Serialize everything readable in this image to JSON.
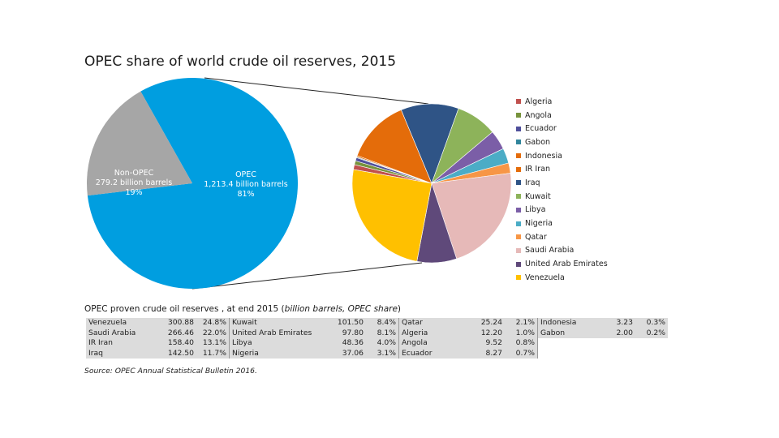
{
  "title": "OPEC share of world crude oil reserves, 2015",
  "chart_data": [
    {
      "type": "pie",
      "slices": [
        {
          "name": "OPEC",
          "value_label": "1,213.4 billion barrels",
          "pct_label": "81%",
          "value": 1213.4,
          "color": "#009ee0"
        },
        {
          "name": "Non-OPEC",
          "value_label": "279.2 billion barrels",
          "pct_label": "19%",
          "value": 279.2,
          "color": "#a6a6a6"
        }
      ]
    },
    {
      "type": "pie",
      "legend_position": "right",
      "series": [
        {
          "name": "Algeria",
          "value": 12.2,
          "color": "#c0504d"
        },
        {
          "name": "Angola",
          "value": 9.52,
          "color": "#77933c"
        },
        {
          "name": "Ecuador",
          "value": 8.27,
          "color": "#4f4f9b"
        },
        {
          "name": "Gabon",
          "value": 2.0,
          "color": "#31859c"
        },
        {
          "name": "Indonesia",
          "value": 3.23,
          "color": "#e46c0a"
        },
        {
          "name": "IR Iran",
          "value": 158.4,
          "color": "#e46c0a"
        },
        {
          "name": "Iraq",
          "value": 142.5,
          "color": "#2f5486"
        },
        {
          "name": "Kuwait",
          "value": 101.5,
          "color": "#8db35a"
        },
        {
          "name": "Libya",
          "value": 48.36,
          "color": "#7b5ea7"
        },
        {
          "name": "Nigeria",
          "value": 37.06,
          "color": "#4bacc6"
        },
        {
          "name": "Qatar",
          "value": 25.24,
          "color": "#f79646"
        },
        {
          "name": "Saudi Arabia",
          "value": 266.46,
          "color": "#e6b9b8"
        },
        {
          "name": "United Arab Emirates",
          "value": 97.8,
          "color": "#5f497a"
        },
        {
          "name": "Venezuela",
          "value": 300.88,
          "color": "#ffc000"
        }
      ]
    }
  ],
  "table": {
    "title_plain": "OPEC proven crude oil reserves , at end 2015 (",
    "title_italic": "billion barrels, OPEC share",
    "title_close": ")",
    "rows": [
      [
        [
          "Venezuela",
          "300.88",
          "24.8%"
        ],
        [
          "Kuwait",
          "101.50",
          "8.4%"
        ],
        [
          "Qatar",
          "25.24",
          "2.1%"
        ],
        [
          "Indonesia",
          "3.23",
          "0.3%"
        ]
      ],
      [
        [
          "Saudi Arabia",
          "266.46",
          "22.0%"
        ],
        [
          "United Arab Emirates",
          "97.80",
          "8.1%"
        ],
        [
          "Algeria",
          "12.20",
          "1.0%"
        ],
        [
          "Gabon",
          "2.00",
          "0.2%"
        ]
      ],
      [
        [
          "IR Iran",
          "158.40",
          "13.1%"
        ],
        [
          "Libya",
          "48.36",
          "4.0%"
        ],
        [
          "Angola",
          "9.52",
          "0.8%"
        ],
        null
      ],
      [
        [
          "Iraq",
          "142.50",
          "11.7%"
        ],
        [
          "Nigeria",
          "37.06",
          "3.1%"
        ],
        [
          "Ecuador",
          "8.27",
          "0.7%"
        ],
        null
      ]
    ]
  },
  "source": "Source: OPEC Annual Statistical Bulletin 2016."
}
